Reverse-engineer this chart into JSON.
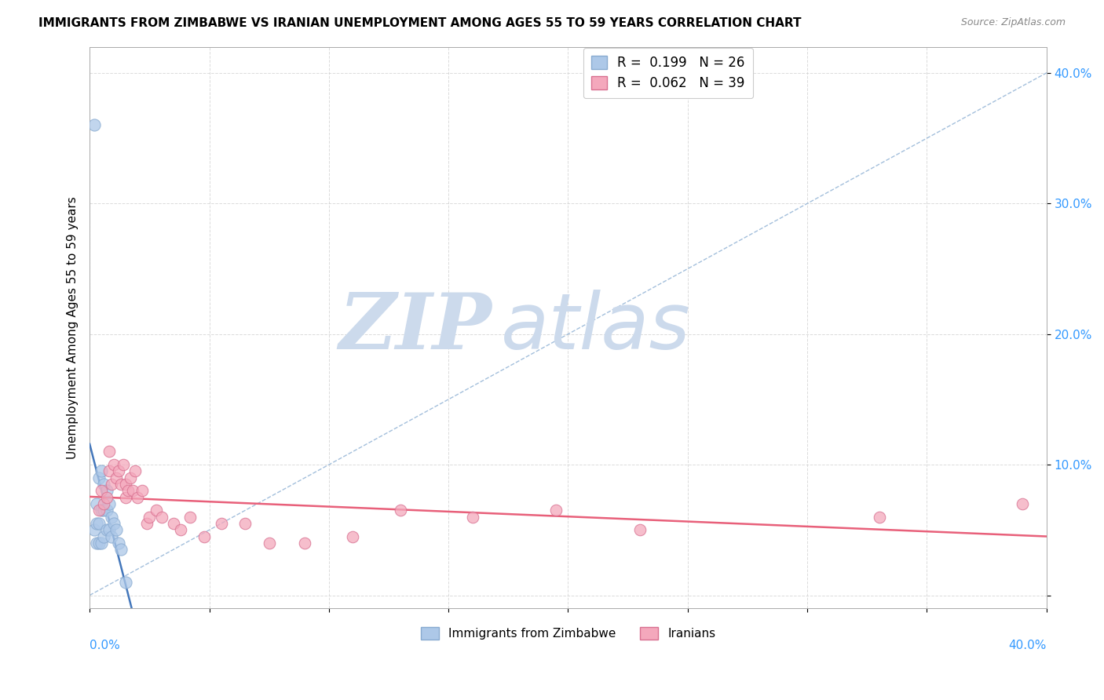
{
  "title": "IMMIGRANTS FROM ZIMBABWE VS IRANIAN UNEMPLOYMENT AMONG AGES 55 TO 59 YEARS CORRELATION CHART",
  "source": "Source: ZipAtlas.com",
  "ylabel": "Unemployment Among Ages 55 to 59 years",
  "xlim": [
    0.0,
    0.4
  ],
  "ylim": [
    -0.01,
    0.42
  ],
  "legend1_r": "0.199",
  "legend1_n": "26",
  "legend2_r": "0.062",
  "legend2_n": "39",
  "zimbabwe_color": "#adc8e8",
  "iranian_color": "#f4a8bc",
  "trend_zimbabwe_color": "#4477bb",
  "trend_iranian_color": "#e8607a",
  "diagonal_color": "#99b8d8",
  "watermark_zip": "ZIP",
  "watermark_atlas": "atlas",
  "watermark_color": "#ccdaec",
  "ytick_vals": [
    0.0,
    0.1,
    0.2,
    0.3,
    0.4
  ],
  "ytick_labels": [
    "",
    "10.0%",
    "20.0%",
    "30.0%",
    "40.0%"
  ],
  "zimbabwe_x": [
    0.002,
    0.002,
    0.003,
    0.003,
    0.003,
    0.004,
    0.004,
    0.004,
    0.005,
    0.005,
    0.005,
    0.006,
    0.006,
    0.006,
    0.007,
    0.007,
    0.007,
    0.008,
    0.008,
    0.009,
    0.009,
    0.01,
    0.011,
    0.012,
    0.013,
    0.015
  ],
  "zimbabwe_y": [
    0.36,
    0.05,
    0.07,
    0.055,
    0.04,
    0.09,
    0.055,
    0.04,
    0.095,
    0.065,
    0.04,
    0.085,
    0.065,
    0.045,
    0.08,
    0.065,
    0.05,
    0.07,
    0.05,
    0.06,
    0.045,
    0.055,
    0.05,
    0.04,
    0.035,
    0.01
  ],
  "iranian_x": [
    0.004,
    0.005,
    0.006,
    0.007,
    0.008,
    0.008,
    0.009,
    0.01,
    0.011,
    0.012,
    0.013,
    0.014,
    0.015,
    0.015,
    0.016,
    0.017,
    0.018,
    0.019,
    0.02,
    0.022,
    0.024,
    0.025,
    0.028,
    0.03,
    0.035,
    0.038,
    0.042,
    0.048,
    0.055,
    0.065,
    0.075,
    0.09,
    0.11,
    0.13,
    0.16,
    0.195,
    0.23,
    0.33,
    0.39
  ],
  "iranian_y": [
    0.065,
    0.08,
    0.07,
    0.075,
    0.11,
    0.095,
    0.085,
    0.1,
    0.09,
    0.095,
    0.085,
    0.1,
    0.085,
    0.075,
    0.08,
    0.09,
    0.08,
    0.095,
    0.075,
    0.08,
    0.055,
    0.06,
    0.065,
    0.06,
    0.055,
    0.05,
    0.06,
    0.045,
    0.055,
    0.055,
    0.04,
    0.04,
    0.045,
    0.065,
    0.06,
    0.065,
    0.05,
    0.06,
    0.07
  ]
}
